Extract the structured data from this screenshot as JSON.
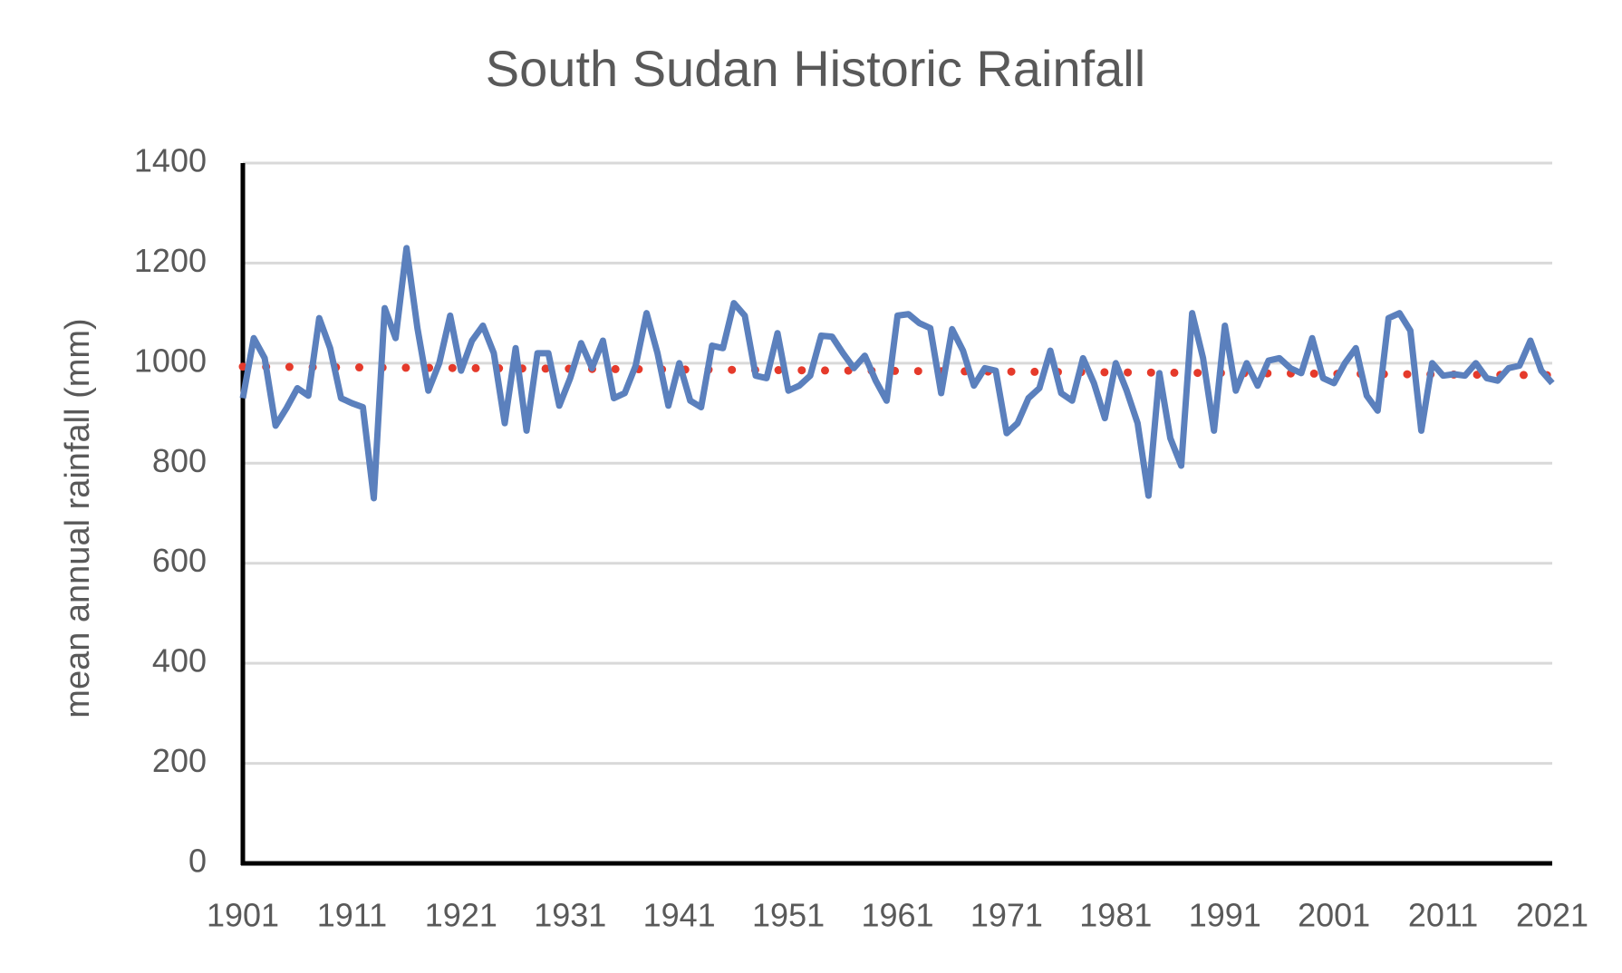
{
  "chart_data": {
    "type": "line",
    "title": "South Sudan Historic Rainfall",
    "y_label": "mean annual rainfall (mm)",
    "x": [
      1901,
      1902,
      1903,
      1904,
      1905,
      1906,
      1907,
      1908,
      1909,
      1910,
      1911,
      1912,
      1913,
      1914,
      1915,
      1916,
      1917,
      1918,
      1919,
      1920,
      1921,
      1922,
      1923,
      1924,
      1925,
      1926,
      1927,
      1928,
      1929,
      1930,
      1931,
      1932,
      1933,
      1934,
      1935,
      1936,
      1937,
      1938,
      1939,
      1940,
      1941,
      1942,
      1943,
      1944,
      1945,
      1946,
      1947,
      1948,
      1949,
      1950,
      1951,
      1952,
      1953,
      1954,
      1955,
      1956,
      1957,
      1958,
      1959,
      1960,
      1961,
      1962,
      1963,
      1964,
      1965,
      1966,
      1967,
      1968,
      1969,
      1970,
      1971,
      1972,
      1973,
      1974,
      1975,
      1976,
      1977,
      1978,
      1979,
      1980,
      1981,
      1982,
      1983,
      1984,
      1985,
      1986,
      1987,
      1988,
      1989,
      1990,
      1991,
      1992,
      1993,
      1994,
      1995,
      1996,
      1997,
      1998,
      1999,
      2000,
      2001,
      2002,
      2003,
      2004,
      2005,
      2006,
      2007,
      2008,
      2009,
      2010,
      2011,
      2012,
      2013,
      2014,
      2015,
      2016,
      2017,
      2018,
      2019,
      2020,
      2021
    ],
    "series": [
      {
        "color": "#5b80bd",
        "style": "solid",
        "values": [
          930,
          1050,
          1010,
          875,
          910,
          950,
          935,
          1090,
          1030,
          930,
          920,
          912,
          730,
          1110,
          1050,
          1230,
          1070,
          945,
          1000,
          1095,
          985,
          1045,
          1075,
          1020,
          880,
          1030,
          865,
          1020,
          1020,
          915,
          970,
          1040,
          990,
          1045,
          930,
          940,
          995,
          1100,
          1020,
          915,
          1000,
          925,
          912,
          1035,
          1030,
          1120,
          1095,
          975,
          970,
          1060,
          945,
          955,
          975,
          1055,
          1053,
          1020,
          990,
          1015,
          965,
          925,
          1095,
          1098,
          1080,
          1070,
          940,
          1068,
          1025,
          955,
          990,
          985,
          860,
          880,
          930,
          950,
          1025,
          940,
          925,
          1010,
          960,
          890,
          1000,
          945,
          880,
          735,
          980,
          850,
          795,
          1100,
          1010,
          865,
          1075,
          945,
          1000,
          955,
          1005,
          1010,
          990,
          980,
          1050,
          970,
          960,
          1000,
          1030,
          935,
          905,
          1090,
          1100,
          1065,
          865,
          1000,
          975,
          978,
          975,
          1000,
          970,
          965,
          990,
          995,
          1045,
          985,
          960
        ]
      },
      {
        "color": "#e53a2b",
        "style": "dotted",
        "x": [
          1901,
          2021
        ],
        "values": [
          993,
          976
        ]
      }
    ],
    "xlim": [
      1901,
      2021
    ],
    "xticks": [
      1901,
      1911,
      1921,
      1931,
      1941,
      1951,
      1961,
      1971,
      1981,
      1991,
      2001,
      2011,
      2021
    ],
    "ylim": [
      0,
      1400
    ],
    "yticks": [
      0,
      200,
      400,
      600,
      800,
      1000,
      1200,
      1400
    ],
    "grid": true
  }
}
